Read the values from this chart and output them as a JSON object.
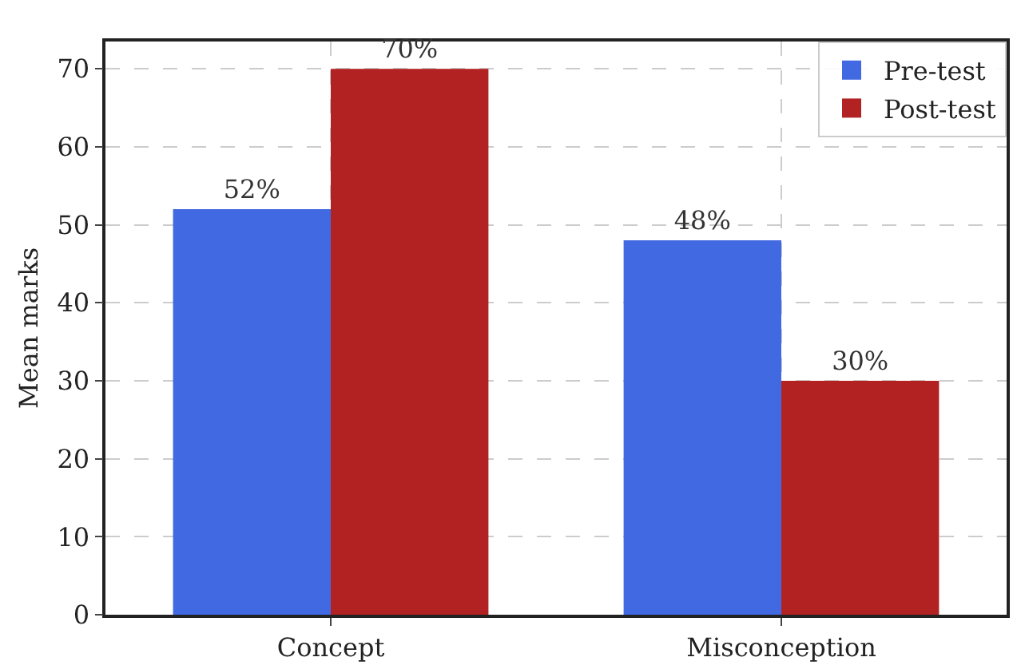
{
  "chart_data": {
    "type": "bar",
    "ylabel": "Mean marks",
    "categories": [
      "Concept",
      "Misconception"
    ],
    "series": [
      {
        "name": "Pre-test",
        "color": "#4169e1",
        "values": [
          52,
          48
        ],
        "value_labels": [
          "52%",
          "48%"
        ]
      },
      {
        "name": "Post-test",
        "color": "#b22222",
        "values": [
          70,
          30
        ],
        "value_labels": [
          "70%",
          "30%"
        ]
      }
    ],
    "ylim": [
      0,
      73.5
    ],
    "yticks": [
      0,
      10,
      20,
      30,
      40,
      50,
      60,
      70
    ],
    "grid": true,
    "legend": "top right"
  }
}
